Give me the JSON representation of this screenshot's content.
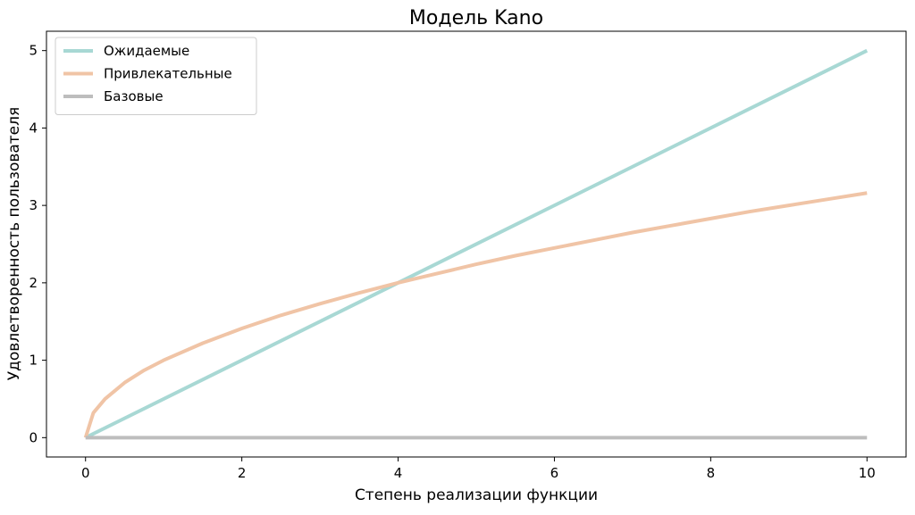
{
  "chart_data": {
    "type": "line",
    "title": "Модель Kano",
    "xlabel": "Степень реализации функции",
    "ylabel": "Удовлетворенность пользователя",
    "xlim": [
      -0.5,
      10.5
    ],
    "ylim": [
      -0.25,
      5.25
    ],
    "xticks": [
      0,
      2,
      4,
      6,
      8,
      10
    ],
    "yticks": [
      0,
      1,
      2,
      3,
      4,
      5
    ],
    "grid": false,
    "legend_position": "top-left",
    "series": [
      {
        "name": "Ожидаемые",
        "color": "#a8d8d4",
        "x": [
          0,
          10
        ],
        "y": [
          0,
          5
        ]
      },
      {
        "name": "Привлекательные",
        "color": "#f0c4a6",
        "x": [
          0,
          0.1,
          0.25,
          0.5,
          0.75,
          1,
          1.5,
          2,
          2.5,
          3,
          3.5,
          4,
          4.5,
          5,
          5.5,
          6,
          6.5,
          7,
          7.5,
          8,
          8.5,
          9,
          9.5,
          10
        ],
        "y": [
          0,
          0.32,
          0.5,
          0.71,
          0.87,
          1,
          1.22,
          1.41,
          1.58,
          1.73,
          1.87,
          2,
          2.12,
          2.24,
          2.35,
          2.45,
          2.55,
          2.65,
          2.74,
          2.83,
          2.92,
          3,
          3.08,
          3.16
        ]
      },
      {
        "name": "Базовые",
        "color": "#bdbdbd",
        "x": [
          0,
          10
        ],
        "y": [
          0,
          0
        ]
      }
    ]
  }
}
